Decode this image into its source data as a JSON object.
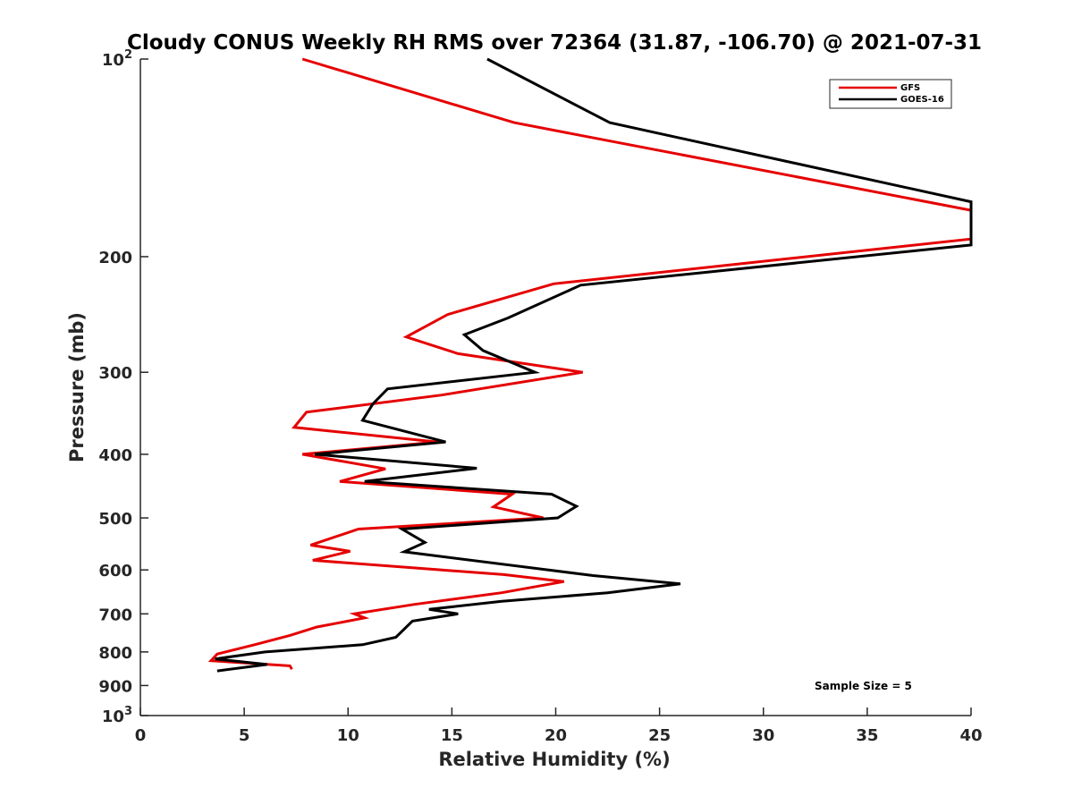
{
  "chart_data": {
    "type": "line",
    "title": "Cloudy CONUS Weekly RH RMS over 72364 (31.87, -106.70) @ 2021-07-31",
    "xlabel": "Relative Humidity (%)",
    "ylabel": "Pressure (mb)",
    "xlim": [
      0,
      40
    ],
    "ylim": [
      100,
      1000
    ],
    "yscale": "log",
    "y_reversed": true,
    "xticks": [
      0,
      5,
      10,
      15,
      20,
      25,
      30,
      35,
      40
    ],
    "yticks": [
      {
        "value": 100,
        "base": "10",
        "exp": "2"
      },
      {
        "value": 200,
        "label": "200"
      },
      {
        "value": 300,
        "label": "300"
      },
      {
        "value": 400,
        "label": "400"
      },
      {
        "value": 500,
        "label": "500"
      },
      {
        "value": 600,
        "label": "600"
      },
      {
        "value": 700,
        "label": "700"
      },
      {
        "value": 800,
        "label": "800"
      },
      {
        "value": 900,
        "label": "900"
      },
      {
        "value": 1000,
        "base": "10",
        "exp": "3"
      }
    ],
    "grid": false,
    "legend_position": "top-right",
    "annotation": "Sample Size = 5",
    "series": [
      {
        "name": "GFS",
        "color": "#e50000",
        "points": [
          [
            7.8,
            100
          ],
          [
            18,
            125
          ],
          [
            40,
            170
          ],
          [
            40,
            188
          ],
          [
            19.9,
            220
          ],
          [
            14.8,
            245
          ],
          [
            12.8,
            265
          ],
          [
            15.3,
            281
          ],
          [
            21.3,
            300
          ],
          [
            14.5,
            325
          ],
          [
            8,
            345
          ],
          [
            7.4,
            364
          ],
          [
            14.3,
            383
          ],
          [
            7.8,
            400
          ],
          [
            11.8,
            421
          ],
          [
            9.6,
            440
          ],
          [
            17.9,
            460
          ],
          [
            17,
            481
          ],
          [
            19.4,
            500
          ],
          [
            10.5,
            520
          ],
          [
            8.2,
            550
          ],
          [
            10.1,
            562
          ],
          [
            8.3,
            580
          ],
          [
            17.5,
            610
          ],
          [
            20.4,
            625
          ],
          [
            17.4,
            650
          ],
          [
            13.2,
            677
          ],
          [
            10.3,
            700
          ],
          [
            10.8,
            710
          ],
          [
            8.5,
            733
          ],
          [
            7.2,
            755
          ],
          [
            5.5,
            780
          ],
          [
            3.7,
            806
          ],
          [
            3.4,
            825
          ],
          [
            7.2,
            840
          ],
          [
            7.3,
            850
          ]
        ]
      },
      {
        "name": "GOES-16",
        "color": "#000000",
        "points": [
          [
            16.7,
            100
          ],
          [
            22.6,
            125
          ],
          [
            40,
            165
          ],
          [
            40,
            192
          ],
          [
            21.2,
            221
          ],
          [
            17.7,
            248
          ],
          [
            15.6,
            263
          ],
          [
            16.5,
            278
          ],
          [
            19,
            300
          ],
          [
            11.9,
            318
          ],
          [
            11.2,
            335
          ],
          [
            10.7,
            355
          ],
          [
            14.7,
            383
          ],
          [
            8.4,
            400
          ],
          [
            16.2,
            420
          ],
          [
            10.8,
            440
          ],
          [
            19.8,
            460
          ],
          [
            21,
            480
          ],
          [
            20.1,
            500
          ],
          [
            12.6,
            520
          ],
          [
            13.7,
            545
          ],
          [
            12.7,
            563
          ],
          [
            21.8,
            612
          ],
          [
            26,
            630
          ],
          [
            22.5,
            650
          ],
          [
            17.4,
            670
          ],
          [
            13.9,
            689
          ],
          [
            15.3,
            700
          ],
          [
            13.1,
            718
          ],
          [
            12.3,
            760
          ],
          [
            10.7,
            780
          ],
          [
            6,
            800
          ],
          [
            3.6,
            820
          ],
          [
            6.1,
            836
          ],
          [
            3.7,
            855
          ]
        ]
      }
    ]
  }
}
